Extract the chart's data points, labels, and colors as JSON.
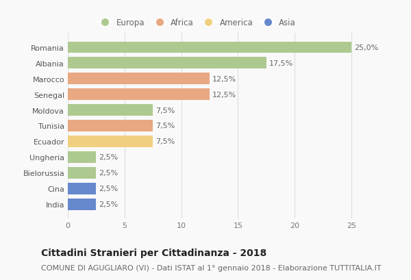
{
  "countries": [
    "Romania",
    "Albania",
    "Marocco",
    "Senegal",
    "Moldova",
    "Tunisia",
    "Ecuador",
    "Ungheria",
    "Bielorussia",
    "Cina",
    "India"
  ],
  "values": [
    25.0,
    17.5,
    12.5,
    12.5,
    7.5,
    7.5,
    7.5,
    2.5,
    2.5,
    2.5,
    2.5
  ],
  "labels": [
    "25,0%",
    "17,5%",
    "12,5%",
    "12,5%",
    "7,5%",
    "7,5%",
    "7,5%",
    "2,5%",
    "2,5%",
    "2,5%",
    "2,5%"
  ],
  "continents": [
    "Europa",
    "Europa",
    "Africa",
    "Africa",
    "Europa",
    "Africa",
    "America",
    "Europa",
    "Europa",
    "Asia",
    "Asia"
  ],
  "colors": {
    "Europa": "#adc990",
    "Africa": "#e8a882",
    "America": "#f0d080",
    "Asia": "#6688cc"
  },
  "legend_order": [
    "Europa",
    "Africa",
    "America",
    "Asia"
  ],
  "xlim": [
    0,
    27
  ],
  "xticks": [
    0,
    5,
    10,
    15,
    20,
    25
  ],
  "title": "Cittadini Stranieri per Cittadinanza - 2018",
  "subtitle": "COMUNE DI AGUGLIARO (VI) - Dati ISTAT al 1° gennaio 2018 - Elaborazione TUTTITALIA.IT",
  "title_fontsize": 10,
  "subtitle_fontsize": 8,
  "label_fontsize": 8,
  "tick_fontsize": 8,
  "legend_fontsize": 8.5,
  "bg_color": "#f9f9f9",
  "grid_color": "#dddddd",
  "bar_height": 0.72
}
